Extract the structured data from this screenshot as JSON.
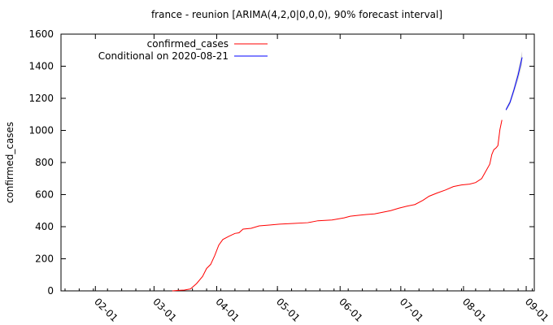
{
  "chart_data": {
    "type": "line",
    "title": "france - reunion [ARIMA(4,2,0|0,0,0), 90% forecast interval]",
    "xlabel": "",
    "ylabel": "confirmed_cases",
    "ylim": [
      0,
      1600
    ],
    "yticks": [
      0,
      200,
      400,
      600,
      800,
      1000,
      1200,
      1400,
      1600
    ],
    "xlim": [
      "2020-01-15",
      "2020-09-05"
    ],
    "xticks": [
      {
        "date": "2020-02-01",
        "label": "02-01"
      },
      {
        "date": "2020-03-01",
        "label": "03-01"
      },
      {
        "date": "2020-04-01",
        "label": "04-01"
      },
      {
        "date": "2020-05-01",
        "label": "05-01"
      },
      {
        "date": "2020-06-01",
        "label": "06-01"
      },
      {
        "date": "2020-07-01",
        "label": "07-01"
      },
      {
        "date": "2020-08-01",
        "label": "08-01"
      },
      {
        "date": "2020-09-01",
        "label": "09-01"
      }
    ],
    "legend_position": "top-left",
    "grid": false,
    "series": [
      {
        "name": "confirmed_cases",
        "color": "#ff0000",
        "points": [
          [
            "2020-03-10",
            0
          ],
          [
            "2020-03-13",
            3
          ],
          [
            "2020-03-16",
            5
          ],
          [
            "2020-03-19",
            12
          ],
          [
            "2020-03-22",
            45
          ],
          [
            "2020-03-25",
            90
          ],
          [
            "2020-03-27",
            140
          ],
          [
            "2020-03-29",
            165
          ],
          [
            "2020-03-31",
            220
          ],
          [
            "2020-04-02",
            285
          ],
          [
            "2020-04-04",
            320
          ],
          [
            "2020-04-07",
            340
          ],
          [
            "2020-04-10",
            358
          ],
          [
            "2020-04-12",
            362
          ],
          [
            "2020-04-14",
            385
          ],
          [
            "2020-04-18",
            390
          ],
          [
            "2020-04-22",
            405
          ],
          [
            "2020-04-27",
            410
          ],
          [
            "2020-05-02",
            416
          ],
          [
            "2020-05-09",
            420
          ],
          [
            "2020-05-16",
            425
          ],
          [
            "2020-05-21",
            437
          ],
          [
            "2020-05-28",
            442
          ],
          [
            "2020-06-03",
            455
          ],
          [
            "2020-06-06",
            465
          ],
          [
            "2020-06-10",
            471
          ],
          [
            "2020-06-14",
            476
          ],
          [
            "2020-06-18",
            480
          ],
          [
            "2020-06-22",
            490
          ],
          [
            "2020-06-26",
            500
          ],
          [
            "2020-06-30",
            515
          ],
          [
            "2020-07-04",
            528
          ],
          [
            "2020-07-08",
            538
          ],
          [
            "2020-07-12",
            565
          ],
          [
            "2020-07-15",
            590
          ],
          [
            "2020-07-19",
            610
          ],
          [
            "2020-07-23",
            628
          ],
          [
            "2020-07-27",
            650
          ],
          [
            "2020-07-31",
            660
          ],
          [
            "2020-08-04",
            665
          ],
          [
            "2020-08-07",
            675
          ],
          [
            "2020-08-10",
            700
          ],
          [
            "2020-08-12",
            745
          ],
          [
            "2020-08-14",
            790
          ],
          [
            "2020-08-15",
            850
          ],
          [
            "2020-08-16",
            880
          ],
          [
            "2020-08-17",
            890
          ],
          [
            "2020-08-18",
            905
          ],
          [
            "2020-08-19",
            1005
          ],
          [
            "2020-08-20",
            1065
          ]
        ]
      },
      {
        "name": "Conditional on 2020-08-21",
        "color": "#0000ff",
        "interval_level": "90%",
        "points": [
          [
            "2020-08-22",
            1128
          ],
          [
            "2020-08-24",
            1175
          ],
          [
            "2020-08-26",
            1255
          ],
          [
            "2020-08-28",
            1345
          ],
          [
            "2020-08-30",
            1455
          ]
        ],
        "interval_lower": [
          1120,
          1160,
          1235,
          1315,
          1410
        ],
        "interval_upper": [
          1138,
          1190,
          1275,
          1375,
          1495
        ]
      }
    ]
  }
}
